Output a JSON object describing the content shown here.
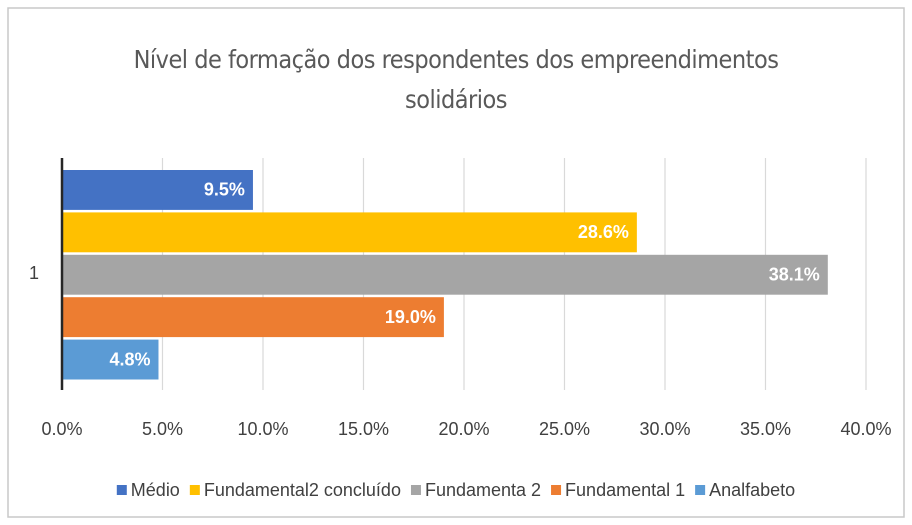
{
  "chart_data": {
    "type": "bar",
    "orientation": "horizontal",
    "title": "Nível de formação dos respondentes dos empreendimentos solidários",
    "categories": [
      "1"
    ],
    "series": [
      {
        "name": "Médio",
        "color": "#4472c4",
        "values": [
          9.5
        ],
        "value_labels": [
          "9.5%"
        ]
      },
      {
        "name": "Fundamental2 concluído",
        "color": "#ffc000",
        "values": [
          28.6
        ],
        "value_labels": [
          "28.6%"
        ]
      },
      {
        "name": "Fundamenta 2",
        "color": "#a5a5a5",
        "values": [
          38.1
        ],
        "value_labels": [
          "38.1%"
        ]
      },
      {
        "name": "Fundamental 1",
        "color": "#ed7d31",
        "values": [
          19.0
        ],
        "value_labels": [
          "19.0%"
        ]
      },
      {
        "name": "Analfabeto",
        "color": "#5b9bd5",
        "values": [
          4.8
        ],
        "value_labels": [
          "4.8%"
        ]
      }
    ],
    "xlim": [
      0,
      40
    ],
    "xticks": [
      {
        "value": 0,
        "label": "0.0%"
      },
      {
        "value": 5,
        "label": "5.0%"
      },
      {
        "value": 10,
        "label": "10.0%"
      },
      {
        "value": 15,
        "label": "15.0%"
      },
      {
        "value": 20,
        "label": "20.0%"
      },
      {
        "value": 25,
        "label": "25.0%"
      },
      {
        "value": 30,
        "label": "30.0%"
      },
      {
        "value": 35,
        "label": "35.0%"
      },
      {
        "value": 40,
        "label": "40.0%"
      }
    ],
    "grid": true,
    "legend": "bottom"
  }
}
